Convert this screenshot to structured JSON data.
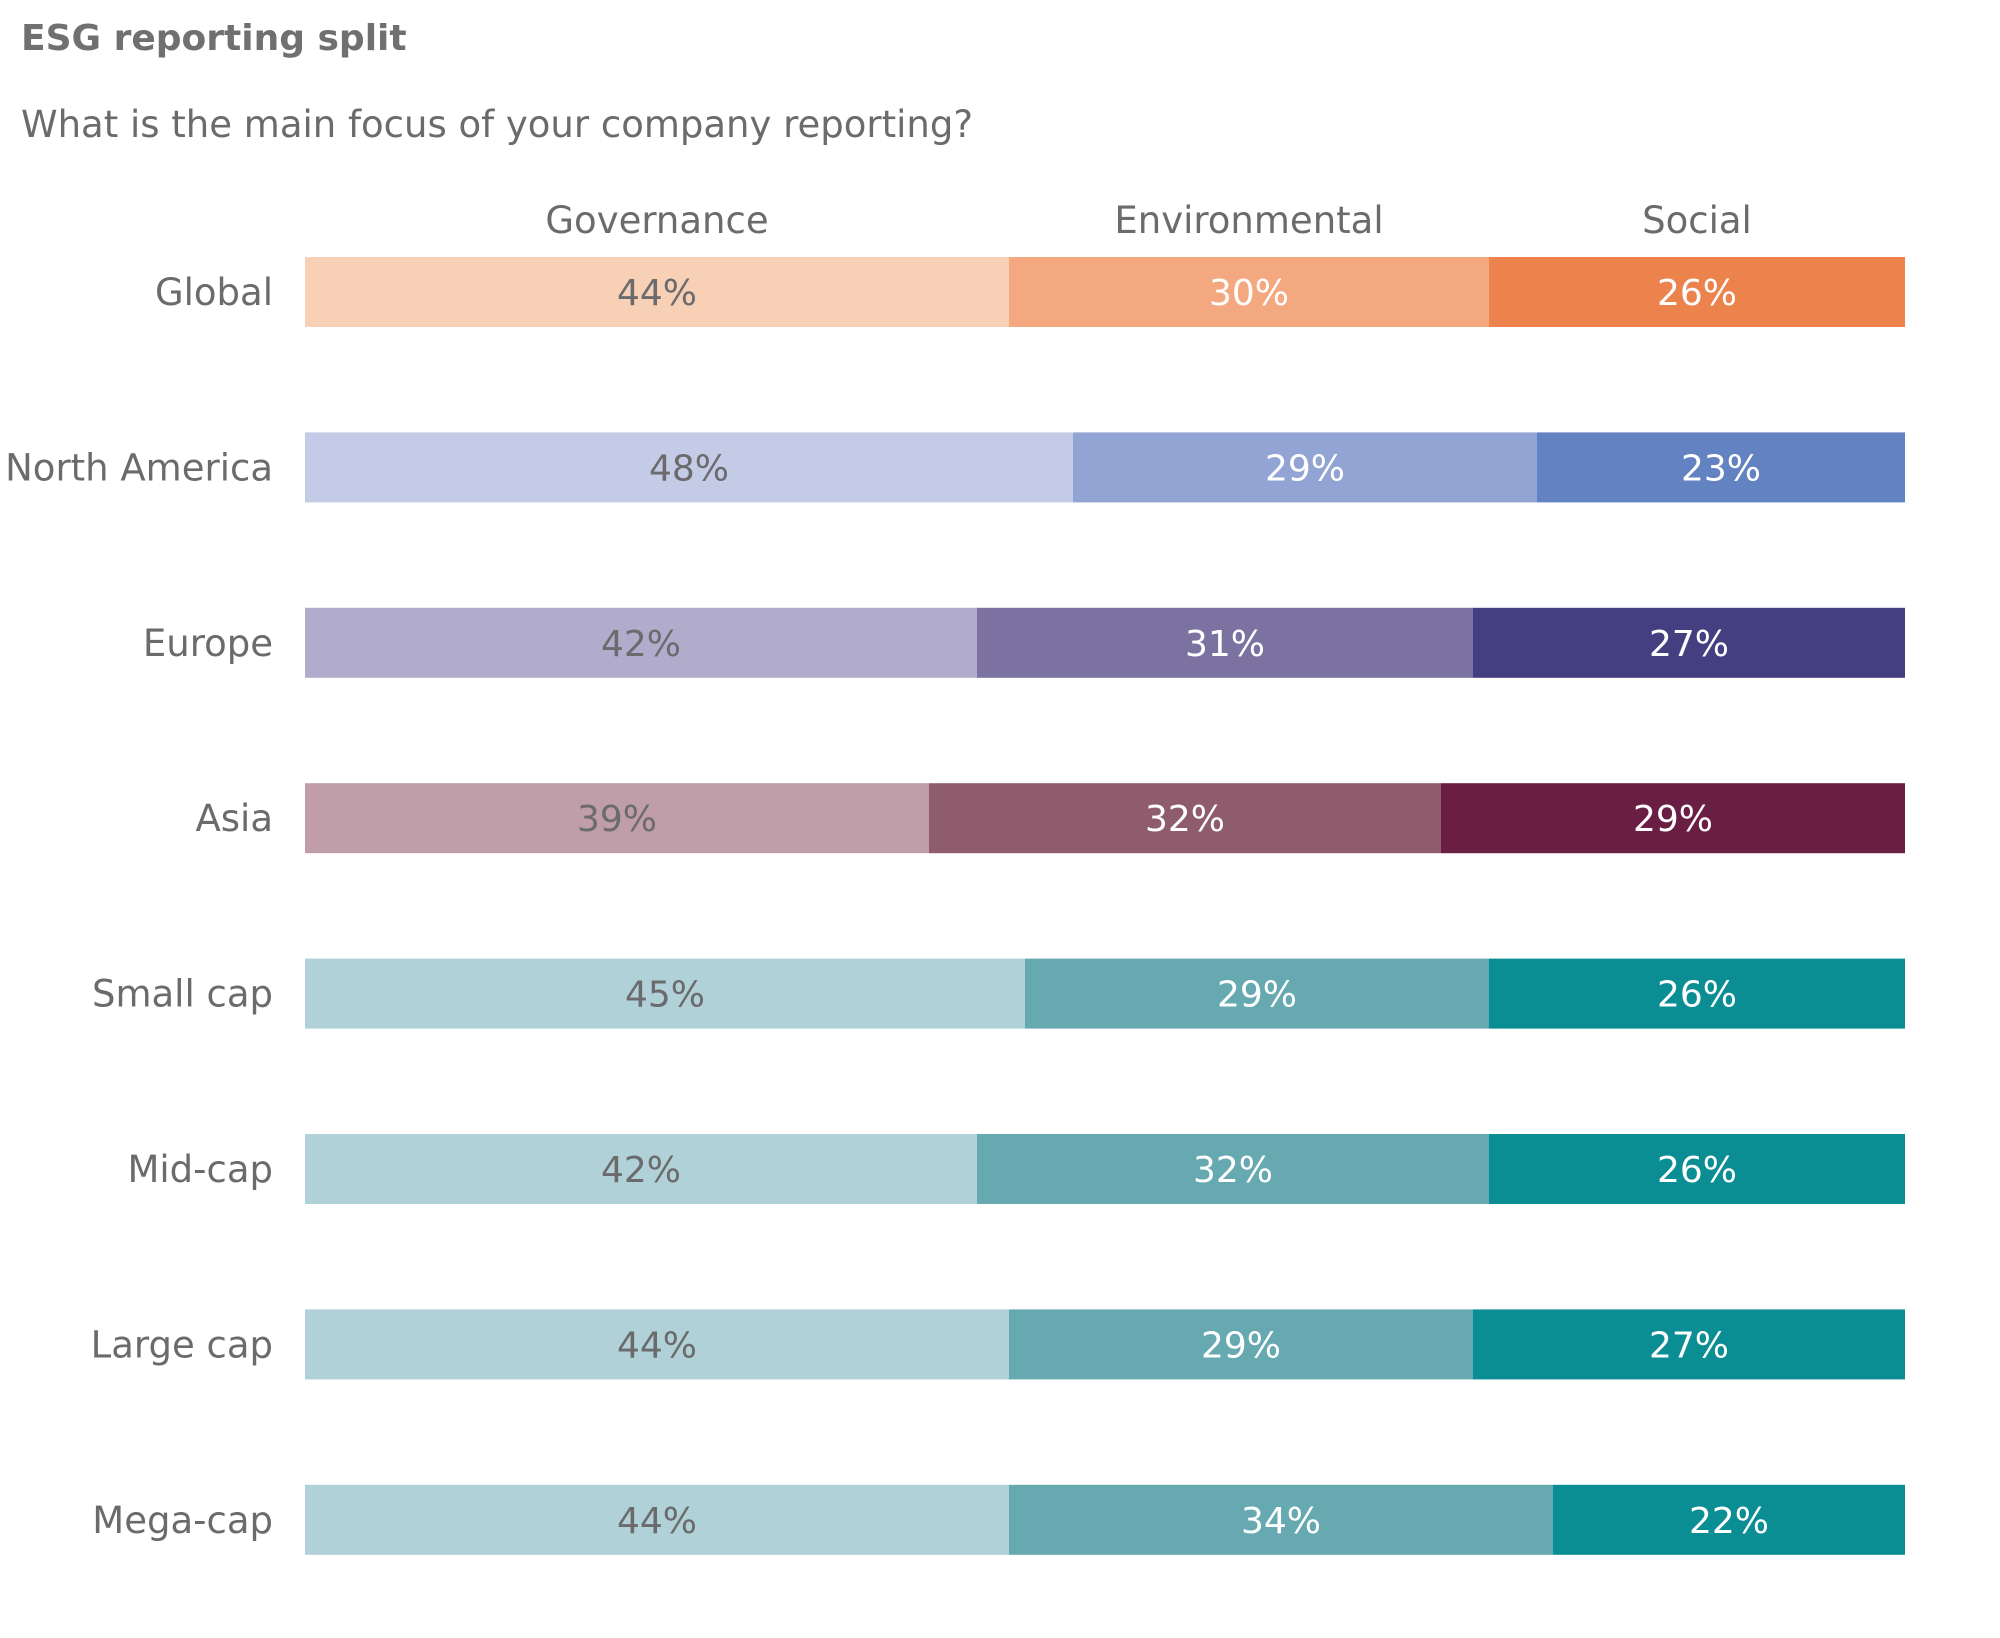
{
  "header": {
    "title": "ESG reporting split",
    "subtitle": "What is the main focus of your company reporting?"
  },
  "chart_data": {
    "type": "bar",
    "orientation": "horizontal",
    "stacked": true,
    "normalized_percent": true,
    "title": "ESG reporting split",
    "subtitle": "What is the main focus of your company reporting?",
    "xlabel": "",
    "ylabel": "",
    "xlim": [
      0,
      100
    ],
    "grid": false,
    "legend": "top",
    "series": [
      {
        "name": "Governance"
      },
      {
        "name": "Environmental"
      },
      {
        "name": "Social"
      }
    ],
    "categories": [
      {
        "label": "Global",
        "values": [
          44,
          30,
          26
        ],
        "value_labels": [
          "44%",
          "30%",
          "26%"
        ],
        "colors": [
          "#f8d0b5",
          "#f3a880",
          "#ec824c"
        ],
        "text_colors": [
          "#6b6b6d",
          "#ffffff",
          "#ffffff"
        ]
      },
      {
        "label": "North America",
        "values": [
          48,
          29,
          23
        ],
        "value_labels": [
          "48%",
          "29%",
          "23%"
        ],
        "colors": [
          "#c3cbe6",
          "#92a4d4",
          "#6282c2"
        ],
        "text_colors": [
          "#6b6b6d",
          "#ffffff",
          "#ffffff"
        ]
      },
      {
        "label": "Europe",
        "values": [
          42,
          31,
          27
        ],
        "value_labels": [
          "42%",
          "31%",
          "27%"
        ],
        "colors": [
          "#b1accb",
          "#7b72a2",
          "#443f81"
        ],
        "text_colors": [
          "#6b6b6d",
          "#ffffff",
          "#ffffff"
        ]
      },
      {
        "label": "Asia",
        "values": [
          39,
          32,
          29
        ],
        "value_labels": [
          "39%",
          "32%",
          "29%"
        ],
        "colors": [
          "#bf9ea9",
          "#8f5c6e",
          "#6a1e43"
        ],
        "text_colors": [
          "#6b6b6d",
          "#ffffff",
          "#ffffff"
        ]
      },
      {
        "label": "Small cap",
        "values": [
          45,
          29,
          26
        ],
        "value_labels": [
          "45%",
          "29%",
          "26%"
        ],
        "colors": [
          "#afd1d7",
          "#66a9b1",
          "#0b8d94"
        ],
        "text_colors": [
          "#6b6b6d",
          "#ffffff",
          "#ffffff"
        ]
      },
      {
        "label": "Mid-cap",
        "values": [
          42,
          32,
          26
        ],
        "value_labels": [
          "42%",
          "32%",
          "26%"
        ],
        "colors": [
          "#afd1d7",
          "#66a9b1",
          "#0b8d94"
        ],
        "text_colors": [
          "#6b6b6d",
          "#ffffff",
          "#ffffff"
        ]
      },
      {
        "label": "Large cap",
        "values": [
          44,
          29,
          27
        ],
        "value_labels": [
          "44%",
          "29%",
          "27%"
        ],
        "colors": [
          "#afd1d7",
          "#66a9b1",
          "#0b8d94"
        ],
        "text_colors": [
          "#6b6b6d",
          "#ffffff",
          "#ffffff"
        ]
      },
      {
        "label": "Mega-cap",
        "values": [
          44,
          34,
          22
        ],
        "value_labels": [
          "44%",
          "34%",
          "22%"
        ],
        "colors": [
          "#afd1d7",
          "#66a9b1",
          "#0b8d94"
        ],
        "text_colors": [
          "#6b6b6d",
          "#ffffff",
          "#ffffff"
        ]
      }
    ]
  }
}
